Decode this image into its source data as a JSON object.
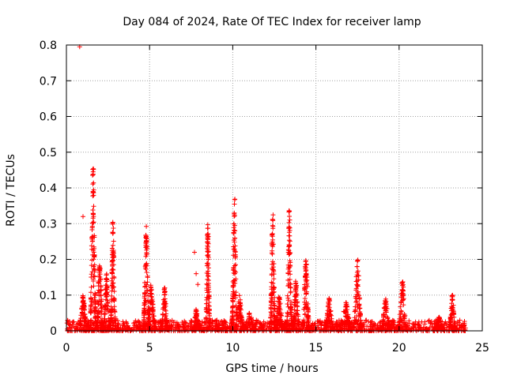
{
  "chart_data": {
    "type": "scatter",
    "title": "Day 084 of 2024, Rate Of TEC Index for receiver lamp",
    "xlabel": "GPS time / hours",
    "ylabel": "ROTI / TECUs",
    "xlim": [
      0,
      25
    ],
    "ylim": [
      0,
      0.8
    ],
    "xticks": [
      0,
      5,
      10,
      15,
      20,
      25
    ],
    "yticks": [
      0,
      0.1,
      0.2,
      0.3,
      0.4,
      0.5,
      0.6,
      0.7,
      0.8
    ],
    "grid": true,
    "marker": "+",
    "color": "#ff0000",
    "series": [
      {
        "name": "ROTI",
        "baseline": {
          "x_range": [
            0,
            24
          ],
          "y_range": [
            0,
            0.03
          ]
        },
        "bursts": [
          {
            "center": 1.0,
            "width": 0.5,
            "peak": 0.1
          },
          {
            "center": 1.6,
            "width": 0.35,
            "peak": 0.47
          },
          {
            "center": 2.0,
            "width": 0.4,
            "peak": 0.2
          },
          {
            "center": 2.4,
            "width": 0.4,
            "peak": 0.16
          },
          {
            "center": 2.8,
            "width": 0.3,
            "peak": 0.31
          },
          {
            "center": 4.8,
            "width": 0.35,
            "peak": 0.3
          },
          {
            "center": 5.1,
            "width": 0.5,
            "peak": 0.13
          },
          {
            "center": 5.9,
            "width": 0.4,
            "peak": 0.12
          },
          {
            "center": 7.8,
            "width": 0.4,
            "peak": 0.06
          },
          {
            "center": 8.5,
            "width": 0.25,
            "peak": 0.32
          },
          {
            "center": 10.1,
            "width": 0.3,
            "peak": 0.38
          },
          {
            "center": 10.4,
            "width": 0.5,
            "peak": 0.1
          },
          {
            "center": 11.0,
            "width": 0.8,
            "peak": 0.05
          },
          {
            "center": 12.4,
            "width": 0.3,
            "peak": 0.35
          },
          {
            "center": 12.8,
            "width": 0.5,
            "peak": 0.1
          },
          {
            "center": 13.4,
            "width": 0.3,
            "peak": 0.35
          },
          {
            "center": 13.8,
            "width": 0.4,
            "peak": 0.14
          },
          {
            "center": 14.4,
            "width": 0.4,
            "peak": 0.22
          },
          {
            "center": 15.8,
            "width": 0.5,
            "peak": 0.1
          },
          {
            "center": 16.8,
            "width": 0.7,
            "peak": 0.08
          },
          {
            "center": 17.5,
            "width": 0.5,
            "peak": 0.2
          },
          {
            "center": 19.2,
            "width": 0.6,
            "peak": 0.09
          },
          {
            "center": 20.2,
            "width": 0.5,
            "peak": 0.14
          },
          {
            "center": 22.4,
            "width": 0.6,
            "peak": 0.04
          },
          {
            "center": 23.2,
            "width": 0.4,
            "peak": 0.1
          }
        ],
        "outliers": [
          {
            "x": 0.8,
            "y": 0.795
          },
          {
            "x": 1.0,
            "y": 0.32
          },
          {
            "x": 7.7,
            "y": 0.22
          },
          {
            "x": 7.8,
            "y": 0.16
          },
          {
            "x": 7.9,
            "y": 0.13
          }
        ]
      }
    ]
  }
}
